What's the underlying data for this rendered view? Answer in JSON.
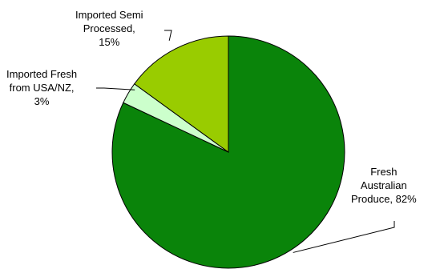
{
  "chart_data": {
    "type": "pie",
    "title": "",
    "slices": [
      {
        "label_lines": [
          "Fresh",
          "Australian",
          "Produce, 82%"
        ],
        "value": 82,
        "color": "#0a840a"
      },
      {
        "label_lines": [
          "Imported Fresh",
          "from USA/NZ,",
          "3%"
        ],
        "value": 3,
        "color": "#ccffcc"
      },
      {
        "label_lines": [
          "Imported Semi",
          "Processed,",
          "15%"
        ],
        "value": 15,
        "color": "#99cc00"
      }
    ],
    "legend": "none",
    "start_direction": "top",
    "clockwise": true
  }
}
